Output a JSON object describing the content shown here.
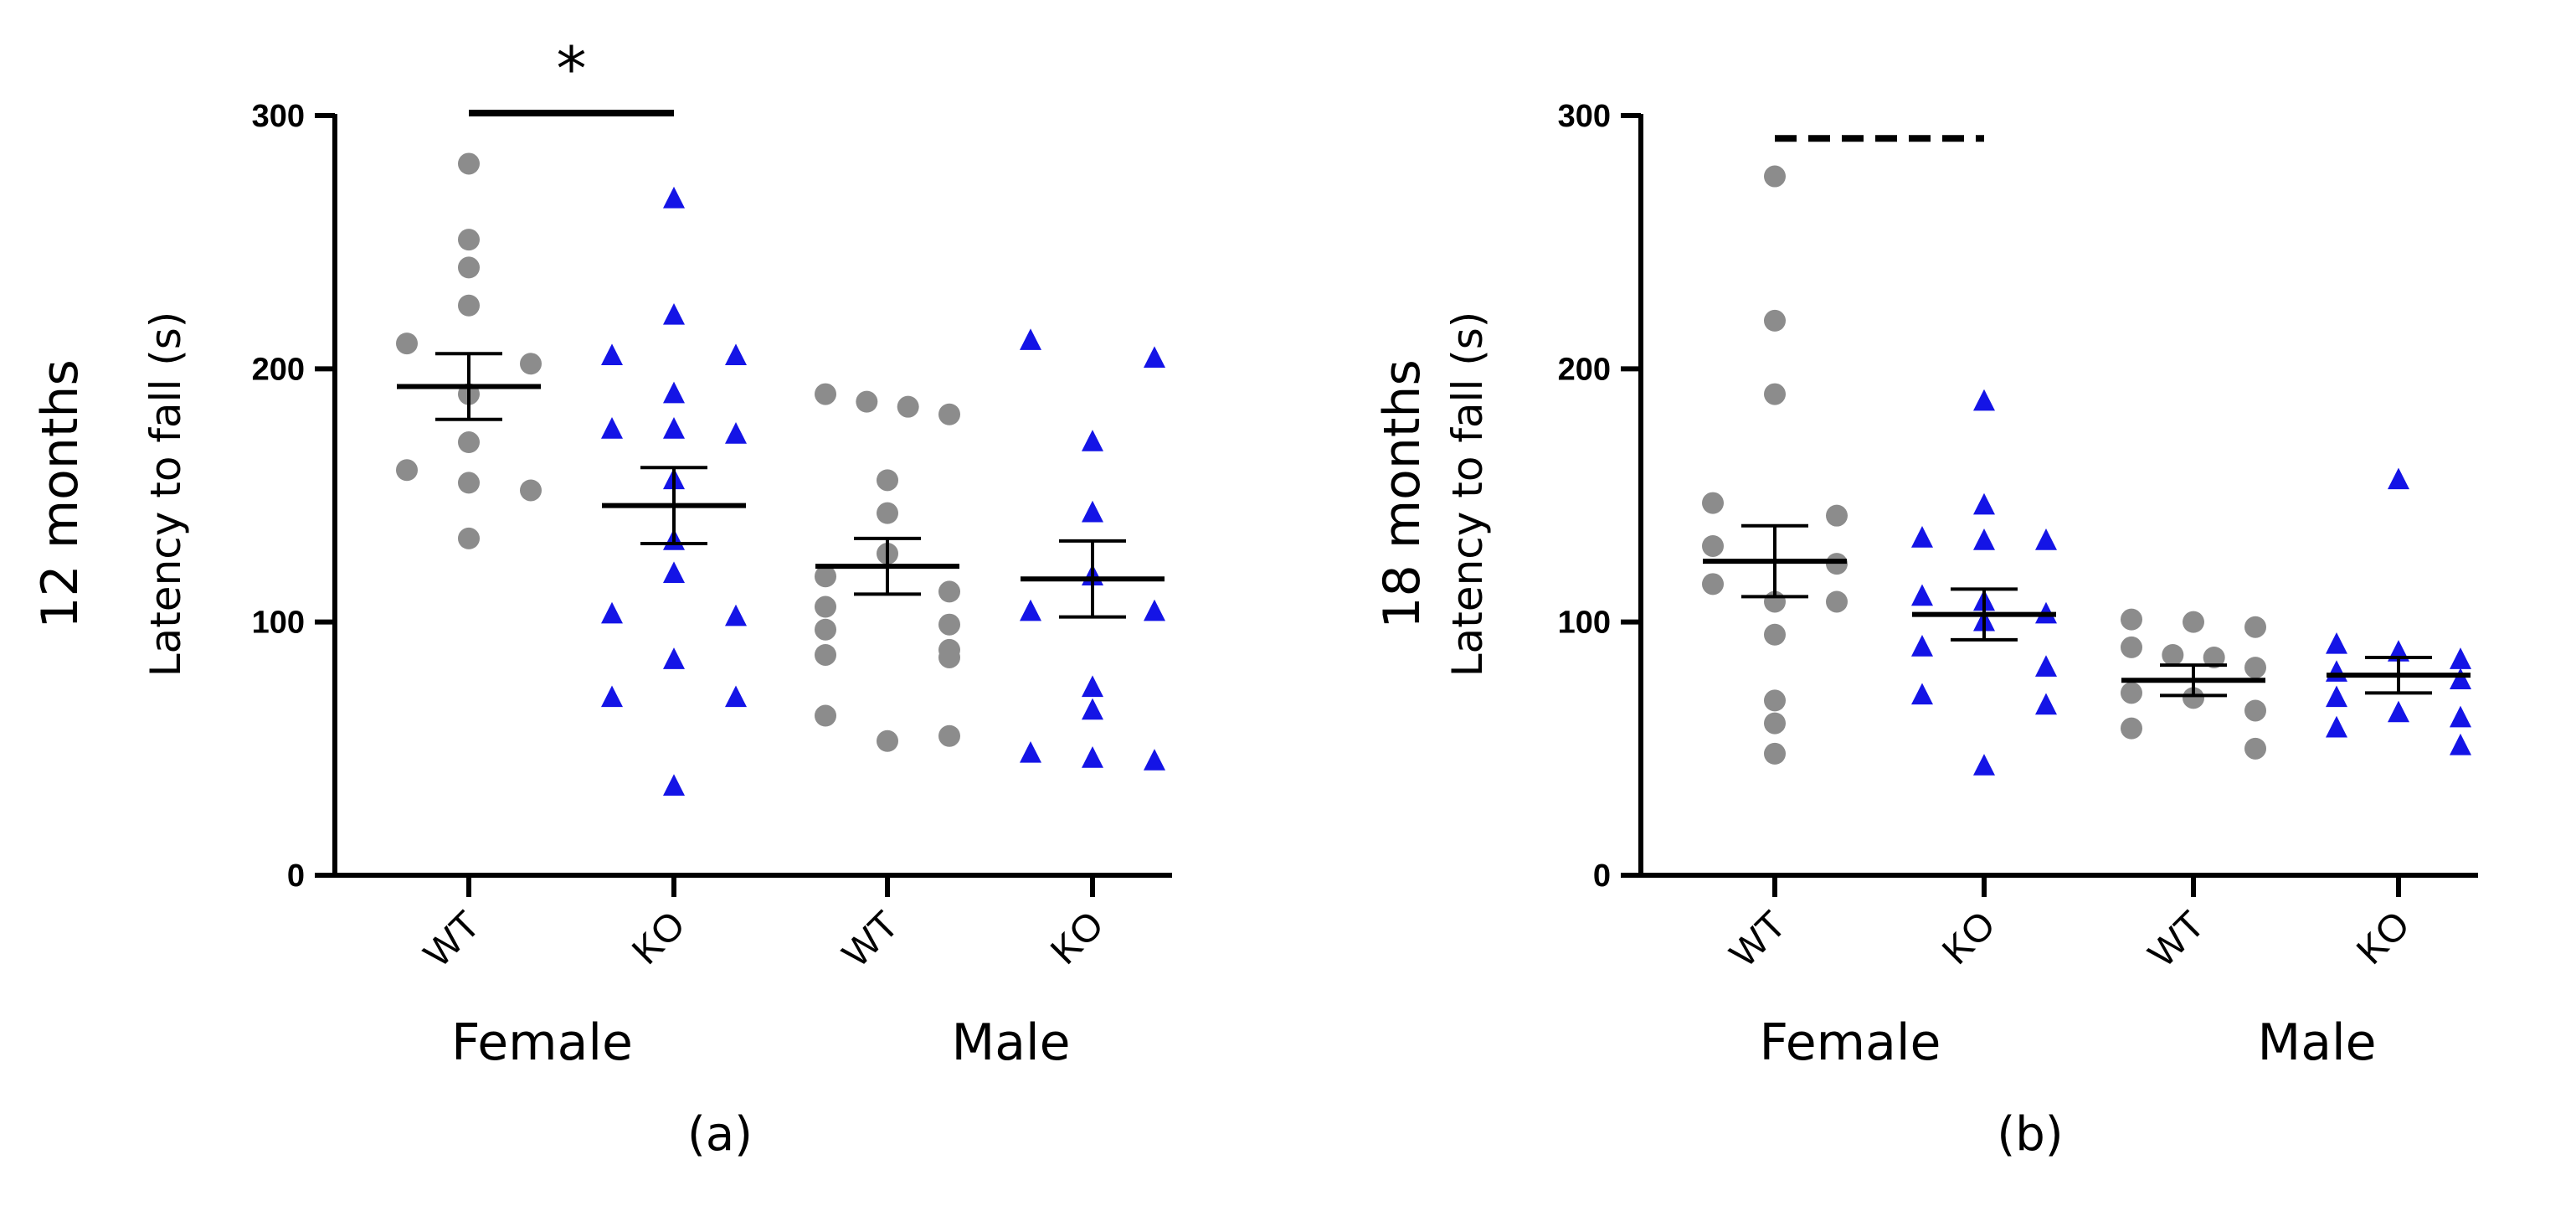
{
  "chart_data": [
    {
      "type": "scatter",
      "panel_label": "(a)",
      "suptitle": "12 months",
      "ylabel": "Latency to fall (s)",
      "ylim": [
        0,
        300
      ],
      "yticks": [
        0,
        100,
        200,
        300
      ],
      "categories": [
        "WT",
        "KO",
        "WT",
        "KO"
      ],
      "groups": [
        {
          "label": "Female",
          "categories": [
            0,
            1
          ]
        },
        {
          "label": "Male",
          "categories": [
            2,
            3
          ]
        }
      ],
      "series": [
        {
          "name": "Female WT",
          "genotype": "WT",
          "color": "#8c8c8c",
          "marker": "circle",
          "values": [
            281,
            251,
            240,
            225,
            210,
            202,
            190,
            171,
            160,
            155,
            152,
            133
          ],
          "mean": 193,
          "sem": 13
        },
        {
          "name": "Female KO",
          "genotype": "KO",
          "color": "#1414e6",
          "marker": "triangle",
          "values": [
            267,
            221,
            205,
            205,
            190,
            176,
            176,
            174,
            156,
            132,
            119,
            103,
            102,
            85,
            70,
            70,
            35
          ],
          "mean": 146,
          "sem": 15
        },
        {
          "name": "Male WT",
          "genotype": "WT",
          "color": "#8c8c8c",
          "marker": "circle",
          "values": [
            190,
            187,
            185,
            182,
            156,
            143,
            127,
            118,
            112,
            106,
            99,
            97,
            89,
            87,
            86,
            63,
            55,
            53
          ],
          "mean": 122,
          "sem": 11
        },
        {
          "name": "Male KO",
          "genotype": "KO",
          "color": "#1414e6",
          "marker": "triangle",
          "values": [
            211,
            204,
            171,
            143,
            118,
            104,
            104,
            74,
            65,
            48,
            46,
            45
          ],
          "mean": 117,
          "sem": 15
        }
      ],
      "annotations": [
        {
          "type": "significance",
          "from": 0,
          "to": 1,
          "y": 301,
          "style": "solid",
          "label": "*"
        }
      ]
    },
    {
      "type": "scatter",
      "panel_label": "(b)",
      "suptitle": "18 months",
      "ylabel": "Latency to fall (s)",
      "ylim": [
        0,
        300
      ],
      "yticks": [
        0,
        100,
        200,
        300
      ],
      "categories": [
        "WT",
        "KO",
        "WT",
        "KO"
      ],
      "groups": [
        {
          "label": "Female",
          "categories": [
            0,
            1
          ]
        },
        {
          "label": "Male",
          "categories": [
            2,
            3
          ]
        }
      ],
      "series": [
        {
          "name": "Female WT",
          "genotype": "WT",
          "color": "#8c8c8c",
          "marker": "circle",
          "values": [
            276,
            219,
            190,
            147,
            142,
            130,
            123,
            115,
            108,
            108,
            95,
            69,
            60,
            48
          ],
          "mean": 124,
          "sem": 14
        },
        {
          "name": "Female KO",
          "genotype": "KO",
          "color": "#1414e6",
          "marker": "triangle",
          "values": [
            187,
            146,
            133,
            132,
            132,
            110,
            108,
            103,
            100,
            90,
            82,
            71,
            67,
            43
          ],
          "mean": 103,
          "sem": 10
        },
        {
          "name": "Male WT",
          "genotype": "WT",
          "color": "#8c8c8c",
          "marker": "circle",
          "values": [
            101,
            100,
            98,
            90,
            87,
            86,
            82,
            72,
            70,
            65,
            58,
            50
          ],
          "mean": 77,
          "sem": 6
        },
        {
          "name": "Male KO",
          "genotype": "KO",
          "color": "#1414e6",
          "marker": "triangle",
          "values": [
            156,
            91,
            88,
            85,
            80,
            77,
            70,
            64,
            62,
            58,
            51
          ],
          "mean": 79,
          "sem": 7
        }
      ],
      "annotations": [
        {
          "type": "significance",
          "from": 0,
          "to": 1,
          "y": 291,
          "style": "dashed",
          "label": ""
        }
      ]
    }
  ]
}
